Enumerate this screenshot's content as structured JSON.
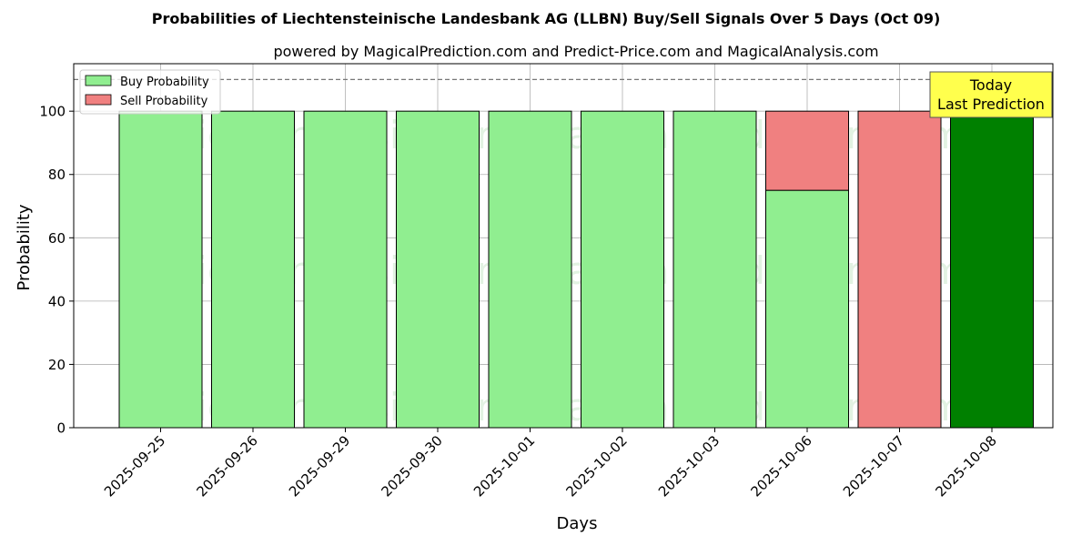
{
  "chart_data": {
    "type": "bar",
    "stacked": true,
    "title": "Probabilities of Liechtensteinische Landesbank AG (LLBN) Buy/Sell Signals Over 5 Days (Oct 09)",
    "subtitle": "powered by MagicalPrediction.com and Predict-Price.com and MagicalAnalysis.com",
    "xlabel": "Days",
    "ylabel": "Probability",
    "ylim": [
      0,
      115
    ],
    "yticks": [
      0,
      20,
      40,
      60,
      80,
      100
    ],
    "grid": true,
    "reference_line": 110,
    "categories": [
      "2025-09-25",
      "2025-09-26",
      "2025-09-29",
      "2025-09-30",
      "2025-10-01",
      "2025-10-02",
      "2025-10-03",
      "2025-10-06",
      "2025-10-07",
      "2025-10-08"
    ],
    "series": [
      {
        "name": "Buy Probability",
        "color": "#90ee90",
        "values": [
          100,
          100,
          100,
          100,
          100,
          100,
          100,
          75,
          0,
          100
        ]
      },
      {
        "name": "Sell Probability",
        "color": "#f08080",
        "values": [
          0,
          0,
          0,
          0,
          0,
          0,
          0,
          25,
          100,
          0
        ]
      }
    ],
    "highlight": {
      "category": "2025-10-08",
      "color": "#008000"
    },
    "legend": {
      "placement": "top-left",
      "entries": [
        "Buy Probability",
        "Sell Probability"
      ]
    },
    "annotation": {
      "lines": [
        "Today",
        "Last Prediction"
      ],
      "background": "#ffff4d"
    },
    "watermarks": [
      "MagicalAnalysis.com",
      "MagicalPrediction.com"
    ]
  }
}
